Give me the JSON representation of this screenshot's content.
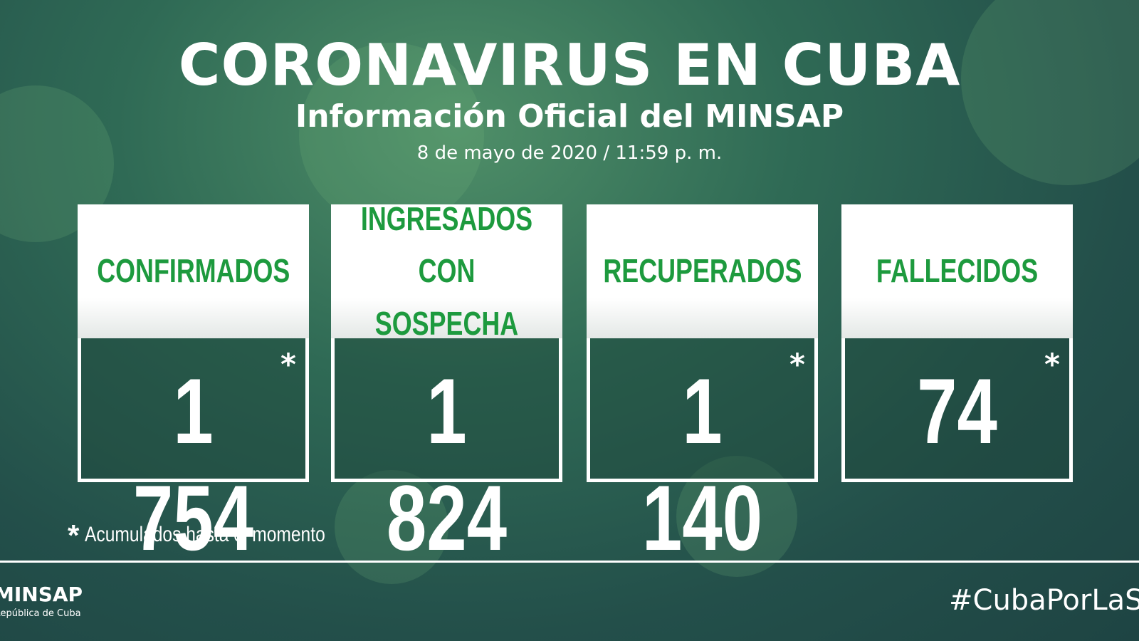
{
  "header": {
    "title": "CORONAVIRUS EN CUBA",
    "subtitle": "Información Oficial del MINSAP",
    "date": "8 de mayo de 2020 / 11:59 p. m."
  },
  "cards": [
    {
      "label": "CONFIRMADOS",
      "value": "1 754",
      "marked": true
    },
    {
      "label": "INGRESADOS CON SOSPECHA",
      "value": "1 824",
      "marked": false
    },
    {
      "label": "RECUPERADOS",
      "value": "1 140",
      "marked": true
    },
    {
      "label": "FALLECIDOS",
      "value": "74",
      "marked": true
    }
  ],
  "note": {
    "marker": "*",
    "text": "Acumulados hasta el momento"
  },
  "footer": {
    "logo": "MINSAP",
    "logo_sub": "República de Cuba",
    "hashtag": "#CubaPorLaSalud"
  }
}
